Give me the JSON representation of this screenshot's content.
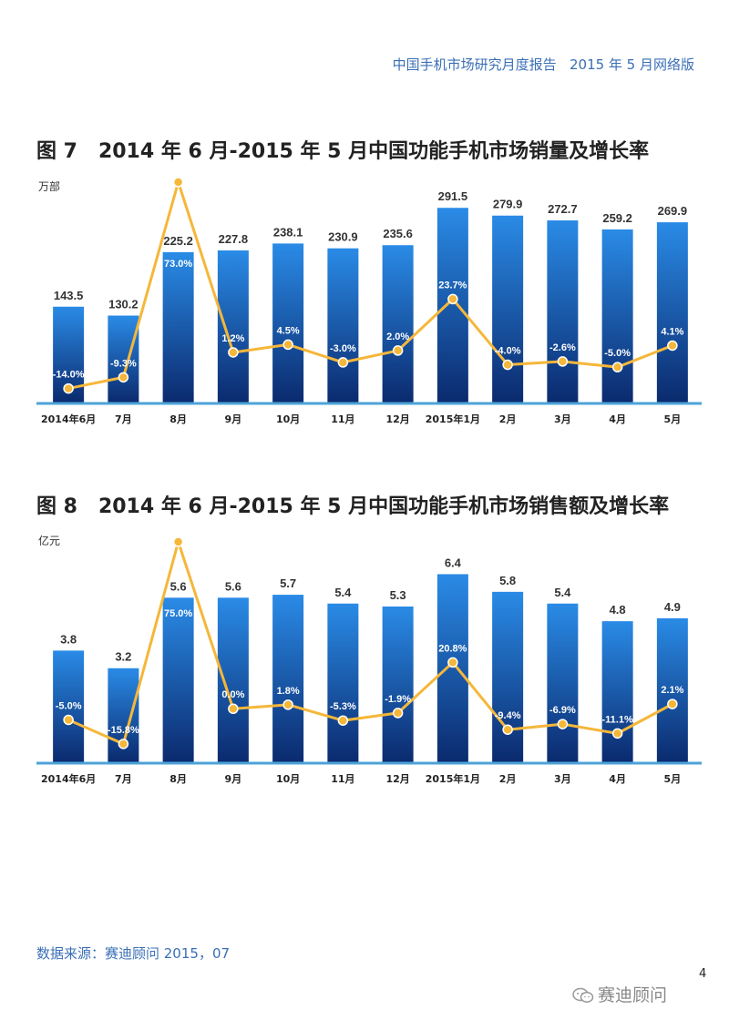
{
  "header": {
    "text": "中国手机市场研究月度报告   2015 年 5 月网络版"
  },
  "charts": [
    {
      "figure_title": "图 7   2014 年 6 月-2015 年 5 月中国功能手机市场销量及增长率",
      "unit": "万部"
    },
    {
      "figure_title": "图 8   2014 年 6 月-2015 年 5 月中国功能手机市场销售额及增长率",
      "unit": "亿元"
    }
  ],
  "chart_data": [
    {
      "type": "bar",
      "categories": [
        "2014年6月",
        "7月",
        "8月",
        "9月",
        "10月",
        "11月",
        "12月",
        "2015年1月",
        "2月",
        "3月",
        "4月",
        "5月"
      ],
      "bar_labels": [
        "143.5",
        "130.2",
        "225.2",
        "227.8",
        "238.1",
        "230.9",
        "235.6",
        "291.5",
        "279.9",
        "272.7",
        "259.2",
        "269.9"
      ],
      "line_labels": [
        "-14.0%",
        "-9.3%",
        "73.0%",
        "1.2%",
        "4.5%",
        "-3.0%",
        "2.0%",
        "23.7%",
        "-4.0%",
        "-2.6%",
        "-5.0%",
        "4.1%"
      ],
      "series": [
        {
          "type": "bar",
          "values": [
            143.5,
            130.2,
            225.2,
            227.8,
            238.1,
            230.9,
            235.6,
            291.5,
            279.9,
            272.7,
            259.2,
            269.9
          ]
        },
        {
          "type": "line",
          "values": [
            -14.0,
            -9.3,
            73.0,
            1.2,
            4.5,
            -3.0,
            2.0,
            23.7,
            -4.0,
            -2.6,
            -5.0,
            4.1
          ]
        }
      ],
      "ylabel": "万部",
      "bar_ylim": [
        0,
        330
      ],
      "line_ylim": [
        -18,
        73
      ],
      "grid": false,
      "legend": "none",
      "colors": {
        "bar_top": "#2a8be6",
        "bar_bottom": "#0b2a6e",
        "line": "#f5b73a",
        "axis": "#4da3d8"
      }
    },
    {
      "type": "bar",
      "categories": [
        "2014年6月",
        "7月",
        "8月",
        "9月",
        "10月",
        "11月",
        "12月",
        "2015年1月",
        "2月",
        "3月",
        "4月",
        "5月"
      ],
      "bar_labels": [
        "3.8",
        "3.2",
        "5.6",
        "5.6",
        "5.7",
        "5.4",
        "5.3",
        "6.4",
        "5.8",
        "5.4",
        "4.8",
        "4.9"
      ],
      "line_labels": [
        "-5.0%",
        "-15.8%",
        "75.0%",
        "0.0%",
        "1.8%",
        "-5.3%",
        "-1.9%",
        "20.8%",
        "-9.4%",
        "-6.9%",
        "-11.1%",
        "2.1%"
      ],
      "series": [
        {
          "type": "bar",
          "values": [
            3.8,
            3.2,
            5.6,
            5.6,
            5.7,
            5.4,
            5.3,
            6.4,
            5.8,
            5.4,
            4.8,
            4.9
          ]
        },
        {
          "type": "line",
          "values": [
            -5.0,
            -15.8,
            75.0,
            0.0,
            1.8,
            -5.3,
            -1.9,
            20.8,
            -9.4,
            -6.9,
            -11.1,
            2.1
          ]
        }
      ],
      "ylabel": "亿元",
      "bar_ylim": [
        0,
        7.5
      ],
      "line_ylim": [
        -22,
        75
      ],
      "grid": false,
      "legend": "none",
      "colors": {
        "bar_top": "#2a8be6",
        "bar_bottom": "#0b2a6e",
        "line": "#f5b73a",
        "axis": "#4da3d8"
      }
    }
  ],
  "footer": {
    "source": "数据来源：赛迪顾问 2015，07",
    "page_number": "4",
    "wechat_label": "赛迪顾问"
  }
}
